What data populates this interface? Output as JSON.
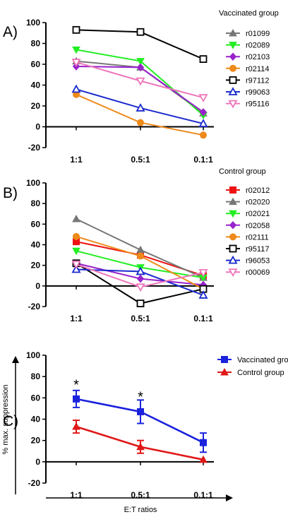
{
  "chart_data": [
    {
      "panel_label": "A)",
      "type": "line",
      "categories": [
        "1:1",
        "0.5:1",
        "0.1:1"
      ],
      "ylim": [
        -20,
        100
      ],
      "yticks": [
        -20,
        0,
        20,
        40,
        60,
        80,
        100
      ],
      "legend_title": "Vaccinated group",
      "legend_position": "right",
      "series": [
        {
          "name": "r01099",
          "color": "#777777",
          "marker": "triangle-up-filled",
          "values": [
            63,
            57,
            13
          ]
        },
        {
          "name": "r02089",
          "color": "#22ee22",
          "marker": "triangle-down-filled",
          "values": [
            74,
            63,
            11
          ]
        },
        {
          "name": "r02103",
          "color": "#9922cc",
          "marker": "diamond-filled",
          "values": [
            58,
            57,
            14
          ]
        },
        {
          "name": "r02114",
          "color": "#ee8a1a",
          "marker": "circle-filled",
          "values": [
            31,
            4,
            -8
          ]
        },
        {
          "name": "r97112",
          "color": "#000000",
          "marker": "square-open",
          "values": [
            93,
            91,
            65
          ]
        },
        {
          "name": "r99063",
          "color": "#1a2acc",
          "marker": "triangle-up-open",
          "values": [
            36,
            18,
            3
          ]
        },
        {
          "name": "r95116",
          "color": "#ee77bb",
          "marker": "triangle-down-open",
          "values": [
            62,
            44,
            28
          ]
        }
      ]
    },
    {
      "panel_label": "B)",
      "type": "line",
      "categories": [
        "1:1",
        "0.5:1",
        "0.1:1"
      ],
      "ylim": [
        -20,
        100
      ],
      "yticks": [
        -20,
        0,
        20,
        40,
        60,
        80,
        100
      ],
      "legend_title": "Control group",
      "legend_position": "right",
      "series": [
        {
          "name": "r02012",
          "color": "#ee1111",
          "marker": "square-filled",
          "values": [
            43,
            30,
            10
          ]
        },
        {
          "name": "r02020",
          "color": "#777777",
          "marker": "triangle-up-filled",
          "values": [
            65,
            35,
            8
          ]
        },
        {
          "name": "r02021",
          "color": "#22ee22",
          "marker": "triangle-down-filled",
          "values": [
            34,
            18,
            8
          ]
        },
        {
          "name": "r02058",
          "color": "#9922cc",
          "marker": "diamond-filled",
          "values": [
            22,
            7,
            1
          ]
        },
        {
          "name": "r02111",
          "color": "#ee8a1a",
          "marker": "circle-filled",
          "values": [
            48,
            29,
            -3
          ]
        },
        {
          "name": "r95117",
          "color": "#000000",
          "marker": "square-open",
          "values": [
            22,
            -17,
            -3
          ]
        },
        {
          "name": "r96053",
          "color": "#1a2acc",
          "marker": "triangle-up-open",
          "values": [
            16,
            14,
            -9
          ]
        },
        {
          "name": "r00069",
          "color": "#ee77bb",
          "marker": "triangle-down-open",
          "values": [
            21,
            -1,
            13
          ]
        }
      ]
    },
    {
      "panel_label": "C)",
      "type": "line",
      "categories": [
        "1:1",
        "0.5:1",
        "0.1:1"
      ],
      "ylim": [
        -20,
        100
      ],
      "yticks": [
        -20,
        0,
        20,
        40,
        60,
        80,
        100
      ],
      "ylabel": "% max. suppression",
      "xlabel": "E:T ratios",
      "legend_position": "top-right",
      "annotations": [
        {
          "text": "*",
          "category": "1:1",
          "y": 73
        },
        {
          "text": "*",
          "category": "0.5:1",
          "y": 62
        }
      ],
      "series": [
        {
          "name": "Vaccinated group",
          "color": "#1a22dd",
          "marker": "square-filled",
          "values": [
            59,
            47,
            18
          ],
          "errors": [
            8,
            11,
            9
          ]
        },
        {
          "name": "Control group",
          "color": "#e01818",
          "marker": "triangle-up-filled",
          "values": [
            33,
            14,
            2
          ],
          "errors": [
            6,
            6,
            0
          ]
        }
      ]
    }
  ]
}
